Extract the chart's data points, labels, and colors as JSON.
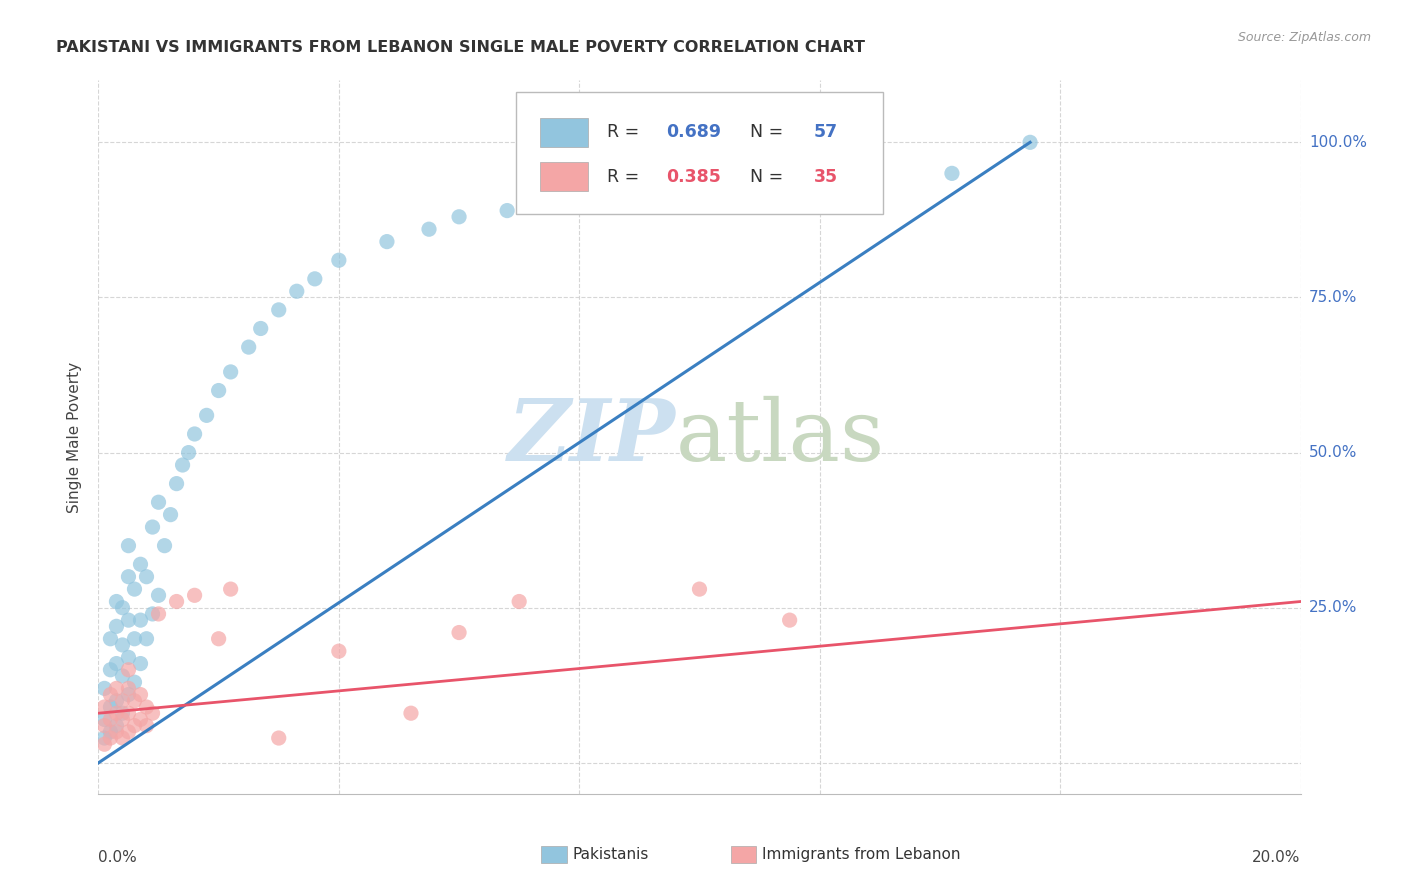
{
  "title": "PAKISTANI VS IMMIGRANTS FROM LEBANON SINGLE MALE POVERTY CORRELATION CHART",
  "source": "Source: ZipAtlas.com",
  "ylabel": "Single Male Poverty",
  "right_yticks": [
    "100.0%",
    "75.0%",
    "50.0%",
    "25.0%"
  ],
  "right_ytick_vals": [
    1.0,
    0.75,
    0.5,
    0.25
  ],
  "legend_blue": {
    "R": "0.689",
    "N": "57"
  },
  "legend_pink": {
    "R": "0.385",
    "N": "35"
  },
  "blue_color": "#92c5de",
  "pink_color": "#f4a6a6",
  "blue_line_color": "#3a7fc1",
  "pink_line_color": "#e8546a",
  "xlim": [
    0.0,
    0.2
  ],
  "ylim": [
    -0.05,
    1.1
  ],
  "pk_x": [
    0.001,
    0.001,
    0.001,
    0.002,
    0.002,
    0.002,
    0.002,
    0.003,
    0.003,
    0.003,
    0.003,
    0.003,
    0.004,
    0.004,
    0.004,
    0.004,
    0.005,
    0.005,
    0.005,
    0.005,
    0.005,
    0.006,
    0.006,
    0.006,
    0.007,
    0.007,
    0.007,
    0.008,
    0.008,
    0.009,
    0.009,
    0.01,
    0.01,
    0.011,
    0.012,
    0.013,
    0.014,
    0.015,
    0.016,
    0.018,
    0.02,
    0.022,
    0.025,
    0.027,
    0.03,
    0.033,
    0.036,
    0.04,
    0.048,
    0.055,
    0.06,
    0.068,
    0.078,
    0.09,
    0.1,
    0.142,
    0.155
  ],
  "pk_y": [
    0.04,
    0.07,
    0.12,
    0.05,
    0.09,
    0.15,
    0.2,
    0.06,
    0.1,
    0.16,
    0.22,
    0.26,
    0.08,
    0.14,
    0.19,
    0.25,
    0.11,
    0.17,
    0.23,
    0.3,
    0.35,
    0.13,
    0.2,
    0.28,
    0.16,
    0.23,
    0.32,
    0.2,
    0.3,
    0.24,
    0.38,
    0.27,
    0.42,
    0.35,
    0.4,
    0.45,
    0.48,
    0.5,
    0.53,
    0.56,
    0.6,
    0.63,
    0.67,
    0.7,
    0.73,
    0.76,
    0.78,
    0.81,
    0.84,
    0.86,
    0.88,
    0.89,
    0.9,
    0.91,
    0.92,
    0.95,
    1.0
  ],
  "lb_x": [
    0.001,
    0.001,
    0.001,
    0.002,
    0.002,
    0.002,
    0.003,
    0.003,
    0.003,
    0.004,
    0.004,
    0.004,
    0.005,
    0.005,
    0.005,
    0.005,
    0.006,
    0.006,
    0.007,
    0.007,
    0.008,
    0.008,
    0.009,
    0.01,
    0.013,
    0.016,
    0.02,
    0.022,
    0.03,
    0.04,
    0.052,
    0.06,
    0.07,
    0.1,
    0.115
  ],
  "lb_y": [
    0.03,
    0.06,
    0.09,
    0.04,
    0.07,
    0.11,
    0.05,
    0.08,
    0.12,
    0.04,
    0.07,
    0.1,
    0.05,
    0.08,
    0.12,
    0.15,
    0.06,
    0.1,
    0.07,
    0.11,
    0.06,
    0.09,
    0.08,
    0.24,
    0.26,
    0.27,
    0.2,
    0.28,
    0.04,
    0.18,
    0.08,
    0.21,
    0.26,
    0.28,
    0.23
  ],
  "blue_line_x": [
    0.0,
    0.155
  ],
  "blue_line_y": [
    0.0,
    1.0
  ],
  "pink_line_x": [
    0.0,
    0.2
  ],
  "pink_line_y": [
    0.08,
    0.26
  ]
}
